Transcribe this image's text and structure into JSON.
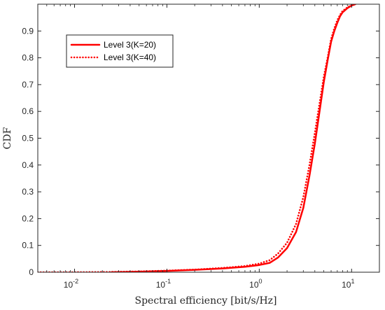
{
  "chart_data": {
    "type": "line",
    "xscale": "log",
    "xlabel": "Spectral efficiency [bit/s/Hz]",
    "ylabel": "CDF",
    "xlim": [
      0.004,
      20
    ],
    "ylim": [
      0,
      1
    ],
    "x_ticks": [
      0.01,
      0.1,
      1,
      10
    ],
    "x_tick_labels": [
      {
        "base": "10",
        "exp": "-2"
      },
      {
        "base": "10",
        "exp": "-1"
      },
      {
        "base": "10",
        "exp": "0"
      },
      {
        "base": "10",
        "exp": "1"
      }
    ],
    "y_ticks": [
      0,
      0.1,
      0.2,
      0.3,
      0.4,
      0.5,
      0.6,
      0.7,
      0.8,
      0.9
    ],
    "y_tick_labels": [
      "0",
      "0.1",
      "0.2",
      "0.3",
      "0.4",
      "0.5",
      "0.6",
      "0.7",
      "0.8",
      "0.9"
    ],
    "grid": false,
    "legend_position": "top-left",
    "series": [
      {
        "name": "Level 3(K=20)",
        "color": "#ff0000",
        "style": "solid",
        "x": [
          0.025,
          0.05,
          0.1,
          0.2,
          0.4,
          0.7,
          1.0,
          1.3,
          1.6,
          2.0,
          2.5,
          3.0,
          3.5,
          4.0,
          4.5,
          5.0,
          5.5,
          6.0,
          6.5,
          7.0,
          7.5,
          8.0,
          9.0,
          10.0,
          11.0
        ],
        "y": [
          0.0,
          0.002,
          0.005,
          0.009,
          0.014,
          0.02,
          0.027,
          0.035,
          0.055,
          0.09,
          0.15,
          0.24,
          0.36,
          0.48,
          0.6,
          0.71,
          0.79,
          0.86,
          0.9,
          0.93,
          0.955,
          0.97,
          0.985,
          0.995,
          1.0
        ]
      },
      {
        "name": "Level 3(K=40)",
        "color": "#ff0000",
        "style": "dotted",
        "x": [
          0.004,
          0.01,
          0.025,
          0.05,
          0.1,
          0.2,
          0.4,
          0.7,
          1.0,
          1.3,
          1.6,
          2.0,
          2.5,
          3.0,
          3.5,
          4.0,
          4.5,
          5.0,
          5.5,
          6.0,
          6.5,
          7.0,
          7.5,
          8.0,
          9.0,
          10.0,
          11.0
        ],
        "y": [
          0.0,
          0.0,
          0.001,
          0.003,
          0.006,
          0.01,
          0.016,
          0.023,
          0.032,
          0.045,
          0.07,
          0.11,
          0.18,
          0.28,
          0.4,
          0.52,
          0.63,
          0.73,
          0.8,
          0.87,
          0.91,
          0.94,
          0.96,
          0.975,
          0.988,
          0.997,
          1.0
        ]
      }
    ]
  }
}
